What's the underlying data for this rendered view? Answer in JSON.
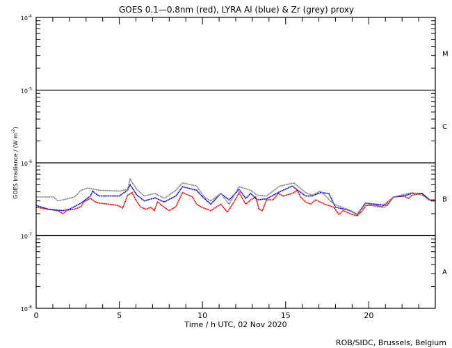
{
  "chart_data": {
    "type": "line",
    "title": "GOES 0.1—0.8nm (red), LYRA Al (blue) & Zr (grey) proxy",
    "xlabel": "Time / h UTC, 02 Nov 2020",
    "ylabel": "GOES Irradiance / (W m^-2)",
    "ylabel_parts": {
      "main": "GOES Irradiance / (W m",
      "sup": "-2",
      "end": ")"
    },
    "xlim": [
      0,
      24
    ],
    "ylim": [
      1e-08,
      0.0001
    ],
    "yscale": "log",
    "xticks": [
      "0",
      "5",
      "10",
      "15",
      "20"
    ],
    "yticks": [
      {
        "value": 0.0001,
        "base": "10",
        "exp": "-4"
      },
      {
        "value": 1e-05,
        "base": "10",
        "exp": "-5"
      },
      {
        "value": 1e-06,
        "base": "10",
        "exp": "-6"
      },
      {
        "value": 1e-07,
        "base": "10",
        "exp": "-7"
      },
      {
        "value": 1e-08,
        "base": "10",
        "exp": "-8"
      }
    ],
    "class_lines": [
      1e-05,
      1e-06,
      1e-07
    ],
    "flare_classes": [
      {
        "label": "M",
        "value": 3.2e-05
      },
      {
        "label": "C",
        "value": 3.2e-06
      },
      {
        "label": "B",
        "value": 3.2e-07
      },
      {
        "label": "A",
        "value": 3.2e-08
      }
    ],
    "series": [
      {
        "name": "GOES 0.1-0.8nm",
        "color": "#ff0000",
        "points": [
          [
            0,
            2.45e-07
          ],
          [
            0.75,
            2.3e-07
          ],
          [
            1.3,
            2.2e-07
          ],
          [
            1.6,
            2e-07
          ],
          [
            1.9,
            2.25e-07
          ],
          [
            2.3,
            2.3e-07
          ],
          [
            2.7,
            2.5e-07
          ],
          [
            2.85,
            2.9e-07
          ],
          [
            3.26,
            3.25e-07
          ],
          [
            3.55,
            2.9e-07
          ],
          [
            3.8,
            2.8e-07
          ],
          [
            4.4,
            2.7e-07
          ],
          [
            4.9,
            2.6e-07
          ],
          [
            5.2,
            2.4e-07
          ],
          [
            5.35,
            2.9e-07
          ],
          [
            5.5,
            3.6e-07
          ],
          [
            5.77,
            3.9e-07
          ],
          [
            6.06,
            2.9e-07
          ],
          [
            6.3,
            2.45e-07
          ],
          [
            6.6,
            2.3e-07
          ],
          [
            6.9,
            2.45e-07
          ],
          [
            7.1,
            2.2e-07
          ],
          [
            7.3,
            2.9e-07
          ],
          [
            7.7,
            2.45e-07
          ],
          [
            8.0,
            2.2e-07
          ],
          [
            8.4,
            2.5e-07
          ],
          [
            8.8,
            3.9e-07
          ],
          [
            9.4,
            3.4e-07
          ],
          [
            9.65,
            2.7e-07
          ],
          [
            9.95,
            2.45e-07
          ],
          [
            10.5,
            2.2e-07
          ],
          [
            11.1,
            2.7e-07
          ],
          [
            11.5,
            2.1e-07
          ],
          [
            11.9,
            2.9e-07
          ],
          [
            12.2,
            3.9e-07
          ],
          [
            12.6,
            2.7e-07
          ],
          [
            12.9,
            3.1e-07
          ],
          [
            13.2,
            3.4e-07
          ],
          [
            13.4,
            2.3e-07
          ],
          [
            13.6,
            2.2e-07
          ],
          [
            13.85,
            3.1e-07
          ],
          [
            14.25,
            3.1e-07
          ],
          [
            14.55,
            3.8e-07
          ],
          [
            14.85,
            3.5e-07
          ],
          [
            15.4,
            3.8e-07
          ],
          [
            15.7,
            4.2e-07
          ],
          [
            15.9,
            3.4e-07
          ],
          [
            16.2,
            2.9e-07
          ],
          [
            16.5,
            2.7e-07
          ],
          [
            16.8,
            3.1e-07
          ],
          [
            17.35,
            2.7e-07
          ],
          [
            17.9,
            2.45e-07
          ],
          [
            18.2,
            1.95e-07
          ],
          [
            18.45,
            2.2e-07
          ],
          [
            19.0,
            1.95e-07
          ],
          [
            19.3,
            1.87e-07
          ],
          [
            19.6,
            2.2e-07
          ],
          [
            19.85,
            2.6e-07
          ],
          [
            20.4,
            2.6e-07
          ],
          [
            20.8,
            2.5e-07
          ],
          [
            21.5,
            3.4e-07
          ],
          [
            22.1,
            3.5e-07
          ],
          [
            22.4,
            3.25e-07
          ],
          [
            22.6,
            3.6e-07
          ],
          [
            23.2,
            3.8e-07
          ],
          [
            23.6,
            3.1e-07
          ],
          [
            24,
            3.1e-07
          ]
        ]
      },
      {
        "name": "LYRA Al proxy",
        "color": "#0000ff",
        "points": [
          [
            0,
            2.6e-07
          ],
          [
            0.75,
            2.3e-07
          ],
          [
            1.6,
            2.2e-07
          ],
          [
            2.0,
            2.3e-07
          ],
          [
            2.7,
            2.8e-07
          ],
          [
            3.26,
            3.5e-07
          ],
          [
            3.4,
            4.1e-07
          ],
          [
            3.55,
            3.8e-07
          ],
          [
            3.8,
            3.5e-07
          ],
          [
            5.0,
            3.5e-07
          ],
          [
            5.5,
            4.2e-07
          ],
          [
            5.65,
            5e-07
          ],
          [
            6.06,
            3.6e-07
          ],
          [
            6.5,
            3e-07
          ],
          [
            7.15,
            3.3e-07
          ],
          [
            7.7,
            2.9e-07
          ],
          [
            8.4,
            3.5e-07
          ],
          [
            8.8,
            4.7e-07
          ],
          [
            9.65,
            4.2e-07
          ],
          [
            9.95,
            3.5e-07
          ],
          [
            10.5,
            2.7e-07
          ],
          [
            11.1,
            3.8e-07
          ],
          [
            11.6,
            3.1e-07
          ],
          [
            12.2,
            4.3e-07
          ],
          [
            12.6,
            3.25e-07
          ],
          [
            12.9,
            3.8e-07
          ],
          [
            13.3,
            3.1e-07
          ],
          [
            13.85,
            3.2e-07
          ],
          [
            14.55,
            3.9e-07
          ],
          [
            14.85,
            4.2e-07
          ],
          [
            15.4,
            4.8e-07
          ],
          [
            15.8,
            4.1e-07
          ],
          [
            16.2,
            3.5e-07
          ],
          [
            16.6,
            3.5e-07
          ],
          [
            17.1,
            3.9e-07
          ],
          [
            17.6,
            3.8e-07
          ],
          [
            18.0,
            2.45e-07
          ],
          [
            18.9,
            2.2e-07
          ],
          [
            19.3,
            1.95e-07
          ],
          [
            19.8,
            2.8e-07
          ],
          [
            20.4,
            2.7e-07
          ],
          [
            21.1,
            2.6e-07
          ],
          [
            21.5,
            3.4e-07
          ],
          [
            22.1,
            3.5e-07
          ],
          [
            22.6,
            3.8e-07
          ],
          [
            23.2,
            3.8e-07
          ],
          [
            23.75,
            3e-07
          ],
          [
            24,
            3e-07
          ]
        ]
      },
      {
        "name": "LYRA Zr proxy",
        "color": "#808080",
        "points": [
          [
            0,
            3.4e-07
          ],
          [
            1.05,
            3.4e-07
          ],
          [
            1.3,
            3e-07
          ],
          [
            1.6,
            3.1e-07
          ],
          [
            2.3,
            3.4e-07
          ],
          [
            2.7,
            4.2e-07
          ],
          [
            3.1,
            4.5e-07
          ],
          [
            3.55,
            4.3e-07
          ],
          [
            3.8,
            4.2e-07
          ],
          [
            5.0,
            4.1e-07
          ],
          [
            5.5,
            4.3e-07
          ],
          [
            5.65,
            6e-07
          ],
          [
            6.06,
            4.3e-07
          ],
          [
            6.5,
            3.5e-07
          ],
          [
            7.15,
            3.8e-07
          ],
          [
            7.7,
            3.25e-07
          ],
          [
            8.4,
            4.2e-07
          ],
          [
            8.8,
            5.3e-07
          ],
          [
            9.65,
            4.8e-07
          ],
          [
            10.1,
            3.4e-07
          ],
          [
            10.5,
            3e-07
          ],
          [
            11.1,
            3.8e-07
          ],
          [
            11.6,
            2.7e-07
          ],
          [
            12.2,
            4.7e-07
          ],
          [
            12.9,
            4.2e-07
          ],
          [
            13.3,
            3.6e-07
          ],
          [
            13.85,
            3.5e-07
          ],
          [
            14.65,
            4.8e-07
          ],
          [
            15.5,
            5.3e-07
          ],
          [
            16.2,
            3.9e-07
          ],
          [
            16.6,
            3.6e-07
          ],
          [
            17.1,
            4.1e-07
          ],
          [
            17.9,
            2.7e-07
          ],
          [
            18.7,
            2.3e-07
          ],
          [
            19.3,
            1.95e-07
          ],
          [
            19.85,
            2.8e-07
          ],
          [
            20.4,
            2.5e-07
          ],
          [
            20.95,
            2.45e-07
          ],
          [
            21.5,
            3.4e-07
          ],
          [
            22.6,
            3.9e-07
          ],
          [
            23.2,
            3.6e-07
          ],
          [
            23.75,
            3e-07
          ],
          [
            24,
            3e-07
          ]
        ]
      }
    ]
  },
  "footer": "ROB/SIDC, Brussels, Belgium"
}
